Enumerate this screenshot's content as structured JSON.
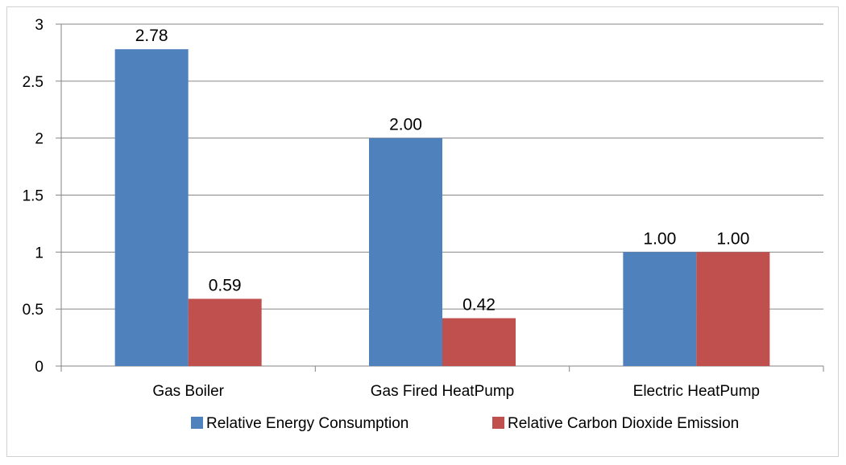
{
  "chart_data": {
    "type": "bar",
    "categories": [
      "Gas Boiler",
      "Gas Fired HeatPump",
      "Electric HeatPump"
    ],
    "series": [
      {
        "name": "Relative Energy Consumption",
        "values": [
          2.78,
          2.0,
          1.0
        ],
        "labels": [
          "2.78",
          "2.00",
          "1.00"
        ],
        "color": "#4f81bd"
      },
      {
        "name": "Relative Carbon Dioxide Emission",
        "values": [
          0.59,
          0.42,
          1.0
        ],
        "labels": [
          "0.59",
          "0.42",
          "1.00"
        ],
        "color": "#c0504d"
      }
    ],
    "ylim": [
      0,
      3
    ],
    "yticks": [
      0,
      0.5,
      1,
      1.5,
      2,
      2.5,
      3
    ],
    "ytick_labels": [
      "0",
      "0.5",
      "1",
      "1.5",
      "2",
      "2.5",
      "3"
    ],
    "grid": true,
    "legend_position": "bottom",
    "title": "",
    "xlabel": "",
    "ylabel": ""
  }
}
